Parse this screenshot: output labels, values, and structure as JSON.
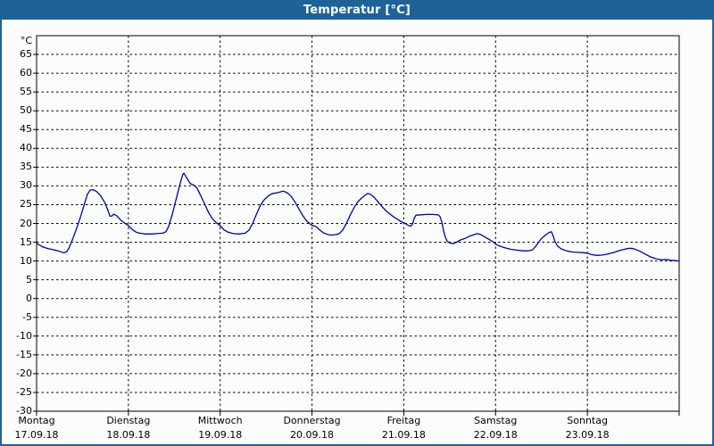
{
  "window": {
    "title": "Temperatur [°C]"
  },
  "colors": {
    "titlebar_bg": "#1E6398",
    "titlebar_text": "#FFFFFF",
    "window_border": "#1E6398",
    "background": "#FBFDFB",
    "frame": "#000000",
    "grid": "#000000",
    "line": "#0000AA",
    "label": "#000000"
  },
  "chart_data": {
    "type": "line",
    "title": "Temperatur [°C]",
    "y_unit_label": "°C",
    "y_min": -30,
    "y_max": 70,
    "y_tick_step": 5,
    "y_tick_labels": [
      "65",
      "60",
      "55",
      "50",
      "45",
      "40",
      "35",
      "30",
      "25",
      "20",
      "15",
      "10",
      "5",
      "0",
      "-5",
      "-10",
      "-15",
      "-20",
      "-25",
      "-30"
    ],
    "grid": "dashed",
    "x_days": [
      {
        "name": "Montag",
        "date": "17.09.18"
      },
      {
        "name": "Dienstag",
        "date": "18.09.18"
      },
      {
        "name": "Mittwoch",
        "date": "19.09.18"
      },
      {
        "name": "Donnerstag",
        "date": "20.09.18"
      },
      {
        "name": "Freitag",
        "date": "21.09.18"
      },
      {
        "name": "Samstag",
        "date": "22.09.18"
      },
      {
        "name": "Sonntag",
        "date": "23.09.18"
      }
    ],
    "x_unit": "hours_from_monday_00",
    "series": [
      {
        "name": "Temperatur",
        "color": "#0000AA",
        "points": [
          [
            0,
            14.7
          ],
          [
            1.5,
            13.8
          ],
          [
            3,
            13.3
          ],
          [
            4.5,
            13.0
          ],
          [
            6,
            12.6
          ],
          [
            7,
            12.2
          ],
          [
            7.8,
            12.4
          ],
          [
            8.5,
            13.5
          ],
          [
            9.5,
            16.0
          ],
          [
            10.5,
            18.8
          ],
          [
            11.5,
            21.8
          ],
          [
            12.5,
            25.2
          ],
          [
            13.3,
            27.8
          ],
          [
            14,
            28.9
          ],
          [
            14.8,
            29.0
          ],
          [
            15.8,
            28.4
          ],
          [
            16.8,
            27.3
          ],
          [
            17.8,
            25.6
          ],
          [
            18.6,
            23.6
          ],
          [
            19.2,
            21.9
          ],
          [
            19.7,
            22.0
          ],
          [
            20.2,
            22.5
          ],
          [
            21,
            22.0
          ],
          [
            22,
            20.9
          ],
          [
            23,
            20.1
          ],
          [
            24,
            19.4
          ],
          [
            25,
            18.4
          ],
          [
            26,
            17.7
          ],
          [
            27,
            17.4
          ],
          [
            28.5,
            17.2
          ],
          [
            30,
            17.2
          ],
          [
            31.5,
            17.3
          ],
          [
            33,
            17.4
          ],
          [
            33.8,
            17.8
          ],
          [
            34.5,
            19.2
          ],
          [
            35.5,
            22.5
          ],
          [
            36.5,
            26.5
          ],
          [
            37.5,
            30.5
          ],
          [
            38.2,
            33.0
          ],
          [
            38.5,
            33.4
          ],
          [
            39.2,
            32.2
          ],
          [
            40.2,
            30.6
          ],
          [
            41.3,
            30.1
          ],
          [
            42,
            29.3
          ],
          [
            43,
            27.2
          ],
          [
            44,
            25.0
          ],
          [
            45,
            22.8
          ],
          [
            46,
            21.2
          ],
          [
            47,
            20.2
          ],
          [
            48,
            19.4
          ],
          [
            49,
            18.3
          ],
          [
            50,
            17.7
          ],
          [
            51.5,
            17.3
          ],
          [
            53,
            17.2
          ],
          [
            54.5,
            17.4
          ],
          [
            55.5,
            18.2
          ],
          [
            56.5,
            20.0
          ],
          [
            57.5,
            22.5
          ],
          [
            58.5,
            24.8
          ],
          [
            59.5,
            26.3
          ],
          [
            60.5,
            27.3
          ],
          [
            61.5,
            27.9
          ],
          [
            63,
            28.2
          ],
          [
            64.5,
            28.6
          ],
          [
            65.5,
            28.2
          ],
          [
            66.5,
            27.3
          ],
          [
            67.5,
            25.8
          ],
          [
            68.5,
            24.0
          ],
          [
            69.5,
            22.2
          ],
          [
            70.5,
            20.8
          ],
          [
            71.3,
            20.0
          ],
          [
            72,
            19.5
          ],
          [
            73,
            19.2
          ],
          [
            74,
            18.3
          ],
          [
            75,
            17.5
          ],
          [
            76,
            17.1
          ],
          [
            77,
            16.9
          ],
          [
            78,
            17.0
          ],
          [
            79,
            17.2
          ],
          [
            80,
            18.2
          ],
          [
            81,
            20.0
          ],
          [
            82,
            22.2
          ],
          [
            83,
            24.2
          ],
          [
            84,
            25.8
          ],
          [
            85,
            26.8
          ],
          [
            86,
            27.6
          ],
          [
            86.6,
            28.0
          ],
          [
            87.4,
            27.7
          ],
          [
            88.4,
            26.8
          ],
          [
            89.4,
            25.6
          ],
          [
            90.4,
            24.4
          ],
          [
            91.4,
            23.3
          ],
          [
            92.4,
            22.5
          ],
          [
            93.4,
            21.7
          ],
          [
            94.5,
            21.0
          ],
          [
            95.3,
            20.5
          ],
          [
            96,
            20.2
          ],
          [
            96.5,
            19.9
          ],
          [
            97.3,
            19.4
          ],
          [
            97.9,
            19.3
          ],
          [
            98.3,
            19.9
          ],
          [
            98.7,
            21.3
          ],
          [
            99.2,
            22.2
          ],
          [
            100.5,
            22.3
          ],
          [
            102,
            22.4
          ],
          [
            103.5,
            22.4
          ],
          [
            105,
            22.3
          ],
          [
            105.5,
            21.8
          ],
          [
            105.9,
            20.5
          ],
          [
            106.3,
            18.5
          ],
          [
            106.8,
            16.5
          ],
          [
            107.3,
            15.3
          ],
          [
            108,
            14.8
          ],
          [
            108.8,
            14.6
          ],
          [
            109.6,
            14.9
          ],
          [
            110.8,
            15.6
          ],
          [
            112,
            16.0
          ],
          [
            113.2,
            16.6
          ],
          [
            114.3,
            17.0
          ],
          [
            115.2,
            17.3
          ],
          [
            116,
            17.1
          ],
          [
            117,
            16.5
          ],
          [
            118.2,
            15.8
          ],
          [
            119.2,
            15.2
          ],
          [
            120,
            14.5
          ],
          [
            121,
            14.0
          ],
          [
            122.5,
            13.5
          ],
          [
            124,
            13.1
          ],
          [
            125.5,
            12.9
          ],
          [
            127,
            12.7
          ],
          [
            128.5,
            12.7
          ],
          [
            129.7,
            13.0
          ],
          [
            130.7,
            14.2
          ],
          [
            131.8,
            15.8
          ],
          [
            133,
            16.9
          ],
          [
            134,
            17.6
          ],
          [
            134.6,
            17.8
          ],
          [
            135,
            16.8
          ],
          [
            135.5,
            15.2
          ],
          [
            136.2,
            14.0
          ],
          [
            137.2,
            13.2
          ],
          [
            138.5,
            12.7
          ],
          [
            140,
            12.4
          ],
          [
            141.5,
            12.3
          ],
          [
            143,
            12.2
          ],
          [
            144,
            12.1
          ],
          [
            145,
            11.7
          ],
          [
            146.5,
            11.5
          ],
          [
            148,
            11.6
          ],
          [
            149.5,
            11.9
          ],
          [
            151,
            12.3
          ],
          [
            152.5,
            12.8
          ],
          [
            154,
            13.2
          ],
          [
            155,
            13.4
          ],
          [
            156,
            13.3
          ],
          [
            157.5,
            12.7
          ],
          [
            159,
            11.9
          ],
          [
            160.5,
            11.1
          ],
          [
            162,
            10.6
          ],
          [
            163.3,
            10.3
          ],
          [
            164.5,
            10.4
          ],
          [
            165.8,
            10.2
          ],
          [
            167,
            10.1
          ],
          [
            168,
            10.0
          ]
        ]
      }
    ]
  }
}
